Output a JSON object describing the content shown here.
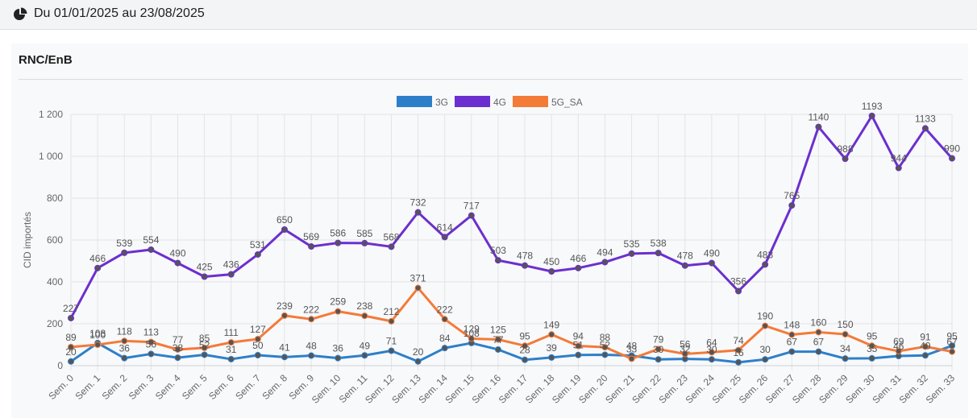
{
  "header": {
    "title": "Du 01/01/2025 au 23/08/2025",
    "icon": "pie-chart-icon"
  },
  "card": {
    "title": "RNC/EnB"
  },
  "chart_data": {
    "type": "line",
    "ylabel": "CID importés",
    "xlabel": "",
    "ylim": [
      0,
      1200
    ],
    "y_ticks": [
      0,
      200,
      400,
      600,
      800,
      1000,
      1200
    ],
    "y_tick_labels": [
      "0",
      "200",
      "400",
      "600",
      "800",
      "1 000",
      "1 200"
    ],
    "grid": true,
    "legend_position": "top-center",
    "categories": [
      "Sem. 0",
      "Sem. 1",
      "Sem. 2",
      "Sem. 3",
      "Sem. 4",
      "Sem. 5",
      "Sem. 6",
      "Sem. 7",
      "Sem. 8",
      "Sem. 9",
      "Sem. 10",
      "Sem. 11",
      "Sem. 12",
      "Sem. 13",
      "Sem. 14",
      "Sem. 15",
      "Sem. 16",
      "Sem. 17",
      "Sem. 18",
      "Sem. 19",
      "Sem. 20",
      "Sem. 21",
      "Sem. 22",
      "Sem. 23",
      "Sem. 24",
      "Sem. 25",
      "Sem. 26",
      "Sem. 27",
      "Sem. 28",
      "Sem. 29",
      "Sem. 30",
      "Sem. 31",
      "Sem. 32",
      "Sem. 33"
    ],
    "series": [
      {
        "name": "3G",
        "color": "#2e7fc9",
        "values": [
          20,
          108,
          36,
          56,
          38,
          52,
          31,
          50,
          41,
          48,
          36,
          49,
          71,
          20,
          84,
          108,
          77,
          28,
          39,
          51,
          52,
          48,
          30,
          32,
          30,
          16,
          30,
          67,
          67,
          34,
          35,
          46,
          49,
          95
        ]
      },
      {
        "name": "4G",
        "color": "#6c2fcf",
        "values": [
          227,
          466,
          539,
          554,
          490,
          425,
          436,
          531,
          650,
          569,
          586,
          585,
          568,
          732,
          614,
          717,
          503,
          478,
          450,
          466,
          494,
          535,
          538,
          478,
          490,
          356,
          483,
          765,
          1140,
          988,
          1193,
          944,
          1133,
          990
        ]
      },
      {
        "name": "5G_SA",
        "color": "#f47a38",
        "values": [
          89,
          100,
          118,
          113,
          77,
          85,
          111,
          127,
          239,
          222,
          259,
          238,
          212,
          371,
          222,
          129,
          125,
          95,
          149,
          94,
          88,
          33,
          79,
          56,
          64,
          74,
          190,
          148,
          160,
          150,
          95,
          69,
          91,
          67
        ]
      }
    ]
  }
}
